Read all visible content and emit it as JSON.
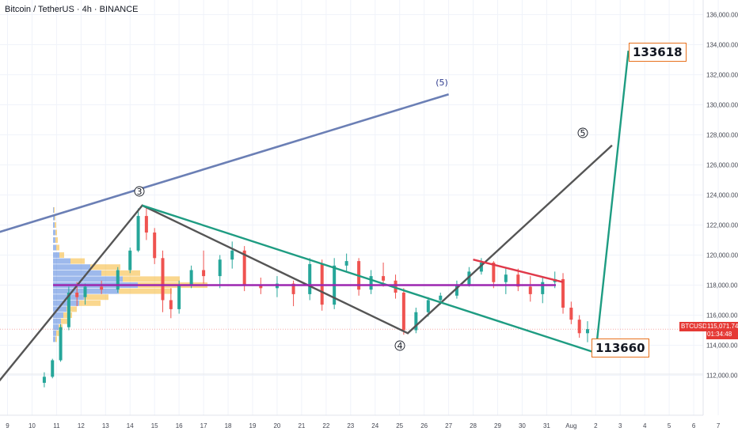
{
  "header": {
    "title": "Bitcoin / TetherUS · 4h · BINANCE"
  },
  "price_axis": {
    "labels": [
      "136,000.00",
      "134,000.00",
      "132,000.00",
      "130,000.00",
      "128,000.00",
      "126,000.00",
      "124,000.00",
      "122,000.00",
      "120,000.00",
      "118,000.00",
      "116,000.00",
      "114,000.00",
      "112,000.00"
    ]
  },
  "time_axis": {
    "labels": [
      "9",
      "10",
      "11",
      "12",
      "13",
      "14",
      "15",
      "16",
      "17",
      "18",
      "19",
      "20",
      "21",
      "22",
      "23",
      "24",
      "25",
      "26",
      "27",
      "28",
      "29",
      "30",
      "31",
      "Aug",
      "2",
      "3",
      "4",
      "5",
      "6",
      "7"
    ]
  },
  "current_price": {
    "symbol": "BTCUSDT",
    "price": "115,071.74",
    "countdown": "01:34:48",
    "color": "#e53935"
  },
  "targets": {
    "upper": "133618",
    "lower": "113660"
  },
  "wave_labels": {
    "w3": "3",
    "w4": "4",
    "w5_circle": "5",
    "w5_paren": "(5)"
  },
  "colors": {
    "up": "#26a69a",
    "down": "#ef5350",
    "channel_blue": "#6b7fb5",
    "wave_gray": "#555555",
    "wedge_teal": "#1e9c82",
    "poc_purple": "#9c27b0",
    "red_trend": "#e0394a",
    "target_border": "#e8711c"
  },
  "chart_data": {
    "type": "candlestick",
    "title": "Bitcoin / TetherUS · 4h · BINANCE",
    "y_unit": "USDT",
    "ylim": [
      111000,
      137000
    ],
    "x_range": [
      "Jul 8",
      "Aug 7"
    ],
    "last_price": 115071.74,
    "candles_approx": [
      {
        "t": "Jul 10 12:00",
        "o": 111500,
        "h": 112200,
        "l": 111200,
        "c": 111900
      },
      {
        "t": "Jul 10 20:00",
        "o": 111900,
        "h": 113100,
        "l": 111800,
        "c": 113000
      },
      {
        "t": "Jul 11 04:00",
        "o": 113000,
        "h": 115400,
        "l": 112900,
        "c": 115200
      },
      {
        "t": "Jul 11 12:00",
        "o": 115200,
        "h": 117900,
        "l": 115000,
        "c": 117500
      },
      {
        "t": "Jul 11 20:00",
        "o": 117500,
        "h": 118200,
        "l": 116600,
        "c": 117200
      },
      {
        "t": "Jul 12 04:00",
        "o": 117200,
        "h": 118100,
        "l": 116700,
        "c": 117900
      },
      {
        "t": "Jul 12 20:00",
        "o": 117900,
        "h": 118300,
        "l": 117400,
        "c": 117700
      },
      {
        "t": "Jul 13 12:00",
        "o": 117700,
        "h": 119200,
        "l": 117500,
        "c": 119000
      },
      {
        "t": "Jul 14 00:00",
        "o": 119000,
        "h": 120500,
        "l": 118800,
        "c": 120300
      },
      {
        "t": "Jul 14 08:00",
        "o": 120300,
        "h": 123100,
        "l": 120200,
        "c": 122600
      },
      {
        "t": "Jul 14 16:00",
        "o": 122600,
        "h": 123200,
        "l": 121000,
        "c": 121500
      },
      {
        "t": "Jul 15 00:00",
        "o": 121500,
        "h": 121800,
        "l": 119400,
        "c": 119800
      },
      {
        "t": "Jul 15 08:00",
        "o": 119800,
        "h": 120300,
        "l": 116200,
        "c": 117000
      },
      {
        "t": "Jul 15 16:00",
        "o": 117000,
        "h": 117800,
        "l": 115800,
        "c": 116400
      },
      {
        "t": "Jul 16 00:00",
        "o": 116400,
        "h": 118300,
        "l": 116100,
        "c": 118000
      },
      {
        "t": "Jul 16 12:00",
        "o": 118000,
        "h": 119300,
        "l": 117800,
        "c": 119000
      },
      {
        "t": "Jul 17 00:00",
        "o": 119000,
        "h": 120300,
        "l": 118100,
        "c": 118600
      },
      {
        "t": "Jul 17 16:00",
        "o": 118600,
        "h": 120000,
        "l": 117800,
        "c": 119700
      },
      {
        "t": "Jul 18 04:00",
        "o": 119700,
        "h": 120900,
        "l": 119100,
        "c": 120300
      },
      {
        "t": "Jul 18 16:00",
        "o": 120300,
        "h": 120600,
        "l": 117600,
        "c": 118000
      },
      {
        "t": "Jul 19 08:00",
        "o": 118000,
        "h": 118500,
        "l": 117400,
        "c": 117800
      },
      {
        "t": "Jul 20 00:00",
        "o": 117800,
        "h": 118600,
        "l": 117200,
        "c": 118100
      },
      {
        "t": "Jul 20 16:00",
        "o": 118100,
        "h": 118300,
        "l": 116600,
        "c": 117400
      },
      {
        "t": "Jul 21 08:00",
        "o": 117400,
        "h": 119800,
        "l": 117000,
        "c": 119400
      },
      {
        "t": "Jul 21 20:00",
        "o": 119400,
        "h": 119700,
        "l": 116300,
        "c": 116700
      },
      {
        "t": "Jul 22 08:00",
        "o": 116700,
        "h": 119800,
        "l": 116400,
        "c": 119300
      },
      {
        "t": "Jul 22 20:00",
        "o": 119300,
        "h": 120100,
        "l": 118900,
        "c": 119600
      },
      {
        "t": "Jul 23 08:00",
        "o": 119600,
        "h": 119800,
        "l": 117300,
        "c": 117700
      },
      {
        "t": "Jul 23 20:00",
        "o": 117700,
        "h": 119000,
        "l": 117400,
        "c": 118600
      },
      {
        "t": "Jul 24 08:00",
        "o": 118600,
        "h": 119500,
        "l": 117900,
        "c": 118300
      },
      {
        "t": "Jul 24 20:00",
        "o": 118300,
        "h": 118700,
        "l": 117100,
        "c": 117500
      },
      {
        "t": "Jul 25 04:00",
        "o": 117500,
        "h": 117800,
        "l": 114700,
        "c": 115000
      },
      {
        "t": "Jul 25 16:00",
        "o": 115000,
        "h": 116500,
        "l": 114800,
        "c": 116200
      },
      {
        "t": "Jul 26 04:00",
        "o": 116200,
        "h": 117200,
        "l": 115900,
        "c": 117000
      },
      {
        "t": "Jul 26 16:00",
        "o": 117000,
        "h": 117500,
        "l": 116700,
        "c": 117300
      },
      {
        "t": "Jul 27 08:00",
        "o": 117300,
        "h": 118300,
        "l": 117100,
        "c": 118000
      },
      {
        "t": "Jul 27 20:00",
        "o": 118000,
        "h": 119200,
        "l": 117900,
        "c": 118900
      },
      {
        "t": "Jul 28 08:00",
        "o": 118900,
        "h": 119800,
        "l": 118700,
        "c": 119500
      },
      {
        "t": "Jul 28 20:00",
        "o": 119500,
        "h": 119600,
        "l": 117800,
        "c": 118200
      },
      {
        "t": "Jul 29 08:00",
        "o": 118200,
        "h": 119200,
        "l": 117400,
        "c": 118700
      },
      {
        "t": "Jul 29 20:00",
        "o": 118700,
        "h": 119100,
        "l": 117600,
        "c": 117900
      },
      {
        "t": "Jul 30 08:00",
        "o": 117900,
        "h": 118600,
        "l": 116900,
        "c": 117400
      },
      {
        "t": "Jul 30 20:00",
        "o": 117400,
        "h": 118500,
        "l": 116800,
        "c": 118200
      },
      {
        "t": "Jul 31 08:00",
        "o": 118200,
        "h": 118900,
        "l": 117800,
        "c": 118400
      },
      {
        "t": "Jul 31 16:00",
        "o": 118400,
        "h": 118800,
        "l": 116100,
        "c": 116500
      },
      {
        "t": "Aug 1 00:00",
        "o": 116500,
        "h": 116900,
        "l": 115400,
        "c": 115700
      },
      {
        "t": "Aug 1 08:00",
        "o": 115700,
        "h": 116000,
        "l": 114500,
        "c": 114800
      },
      {
        "t": "Aug 1 16:00",
        "o": 114800,
        "h": 115600,
        "l": 114200,
        "c": 115070
      }
    ],
    "annotations": [
      {
        "type": "line",
        "name": "channel upper",
        "points": [
          [
            "Jul 8 00:00",
            121200
          ],
          [
            "Jul 27 00:00",
            130700
          ]
        ]
      },
      {
        "type": "line",
        "name": "wave path",
        "points": [
          [
            "Jul 8 12:00",
            111300
          ],
          [
            "Jul 14 12:00",
            123300
          ],
          [
            "Jul 25 08:00",
            114800
          ],
          [
            "Aug 2 16:00",
            127300
          ]
        ]
      },
      {
        "type": "line",
        "name": "wedge",
        "points": [
          [
            "Jul 14 12:00",
            123300
          ],
          [
            "Aug 2 00:00",
            113500
          ],
          [
            "Aug 3 08:00",
            133600
          ]
        ]
      },
      {
        "type": "hline",
        "name": "POC",
        "price": 118000
      },
      {
        "type": "line",
        "name": "red trend",
        "points": [
          [
            "Jul 28 00:00",
            119700
          ],
          [
            "Jul 31 16:00",
            118200
          ]
        ]
      }
    ]
  }
}
